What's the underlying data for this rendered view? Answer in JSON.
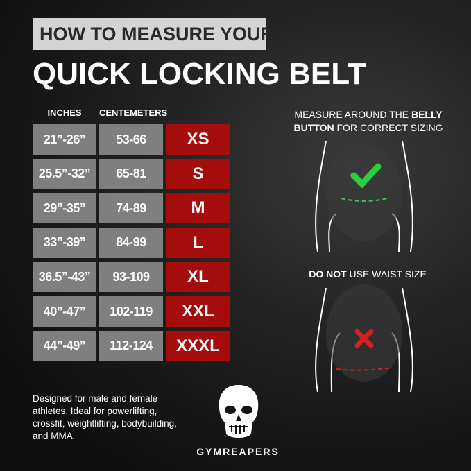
{
  "header": {
    "subtitle": "HOW TO MEASURE YOUR",
    "title": "QUICK LOCKING BELT"
  },
  "table": {
    "columns": [
      "INCHES",
      "CENTEMETERS"
    ],
    "rows": [
      {
        "inches": "21”-26”",
        "cm": "53-66",
        "size": "XS"
      },
      {
        "inches": "25.5”-32”",
        "cm": "65-81",
        "size": "S"
      },
      {
        "inches": "29”-35”",
        "cm": "74-89",
        "size": "M"
      },
      {
        "inches": "33”-39”",
        "cm": "84-99",
        "size": "L"
      },
      {
        "inches": "36.5”-43”",
        "cm": "93-109",
        "size": "XL"
      },
      {
        "inches": "40”-47”",
        "cm": "102-119",
        "size": "XXL"
      },
      {
        "inches": "44”-49”",
        "cm": "112-124",
        "size": "XXXL"
      }
    ]
  },
  "right": {
    "correct_a": "MEASURE AROUND THE ",
    "correct_b": "BELLY",
    "correct_c": "BUTTON",
    " correct_d": "",
    "correct_e": " FOR CORRECT SIZING",
    "wrong_a": "DO NOT",
    "wrong_b": " USE WAIST SIZE"
  },
  "description": "Designed for male and female athletes. Ideal for powerlifting, crossfit, weightlifting, bodybuilding, and MMA.",
  "brand": "GYMREAPERS",
  "colors": {
    "size_cell": "#a50d0d",
    "range_cell": "#7f7f7f",
    "check": "#2ecc40",
    "cross": "#d81f1f"
  }
}
